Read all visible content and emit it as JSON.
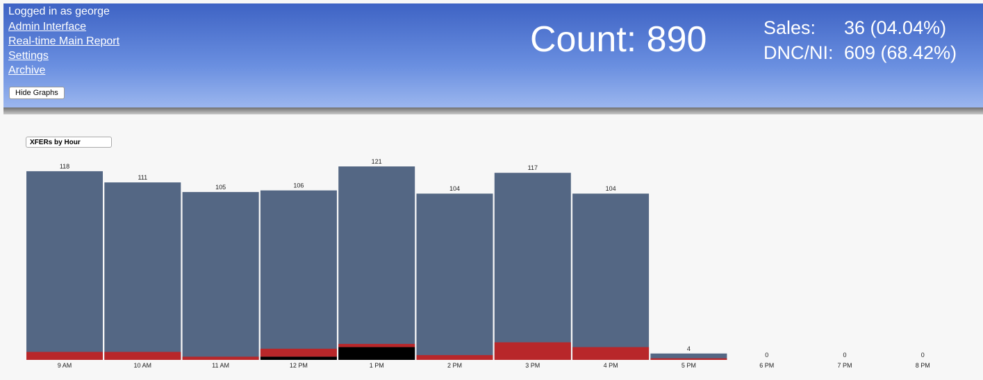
{
  "header": {
    "user": "Logged in as george",
    "links": [
      "Admin Interface",
      "Real-time Main Report",
      "Settings",
      "Archive"
    ],
    "button": "Hide Graphs"
  },
  "stats": {
    "count": "Count: 890",
    "sales_label": "Sales:",
    "sales_value": "36 (04.04%)",
    "dnc_label": "DNC/NI:",
    "dnc_value": "609 (68.42%)"
  },
  "select": "XFERs by Hour",
  "chart_data": {
    "type": "bar",
    "categories": [
      "9 AM",
      "10 AM",
      "11 AM",
      "12 PM",
      "1 PM",
      "2 PM",
      "3 PM",
      "4 PM",
      "5 PM",
      "6 PM",
      "7 PM",
      "8 PM"
    ],
    "values": [
      118,
      111,
      105,
      106,
      121,
      104,
      117,
      104,
      4,
      0,
      0,
      0
    ],
    "color": "#546784",
    "overlays": [
      {
        "color": "#000000",
        "values": [
          0,
          0,
          0,
          2,
          8,
          0,
          0,
          0,
          0,
          0,
          0,
          0
        ]
      },
      {
        "color": "#b8272a",
        "values": [
          5,
          5,
          2,
          5,
          2,
          3,
          11,
          8,
          1,
          0,
          0,
          0
        ]
      }
    ],
    "ylim": [
      0,
      121
    ]
  }
}
